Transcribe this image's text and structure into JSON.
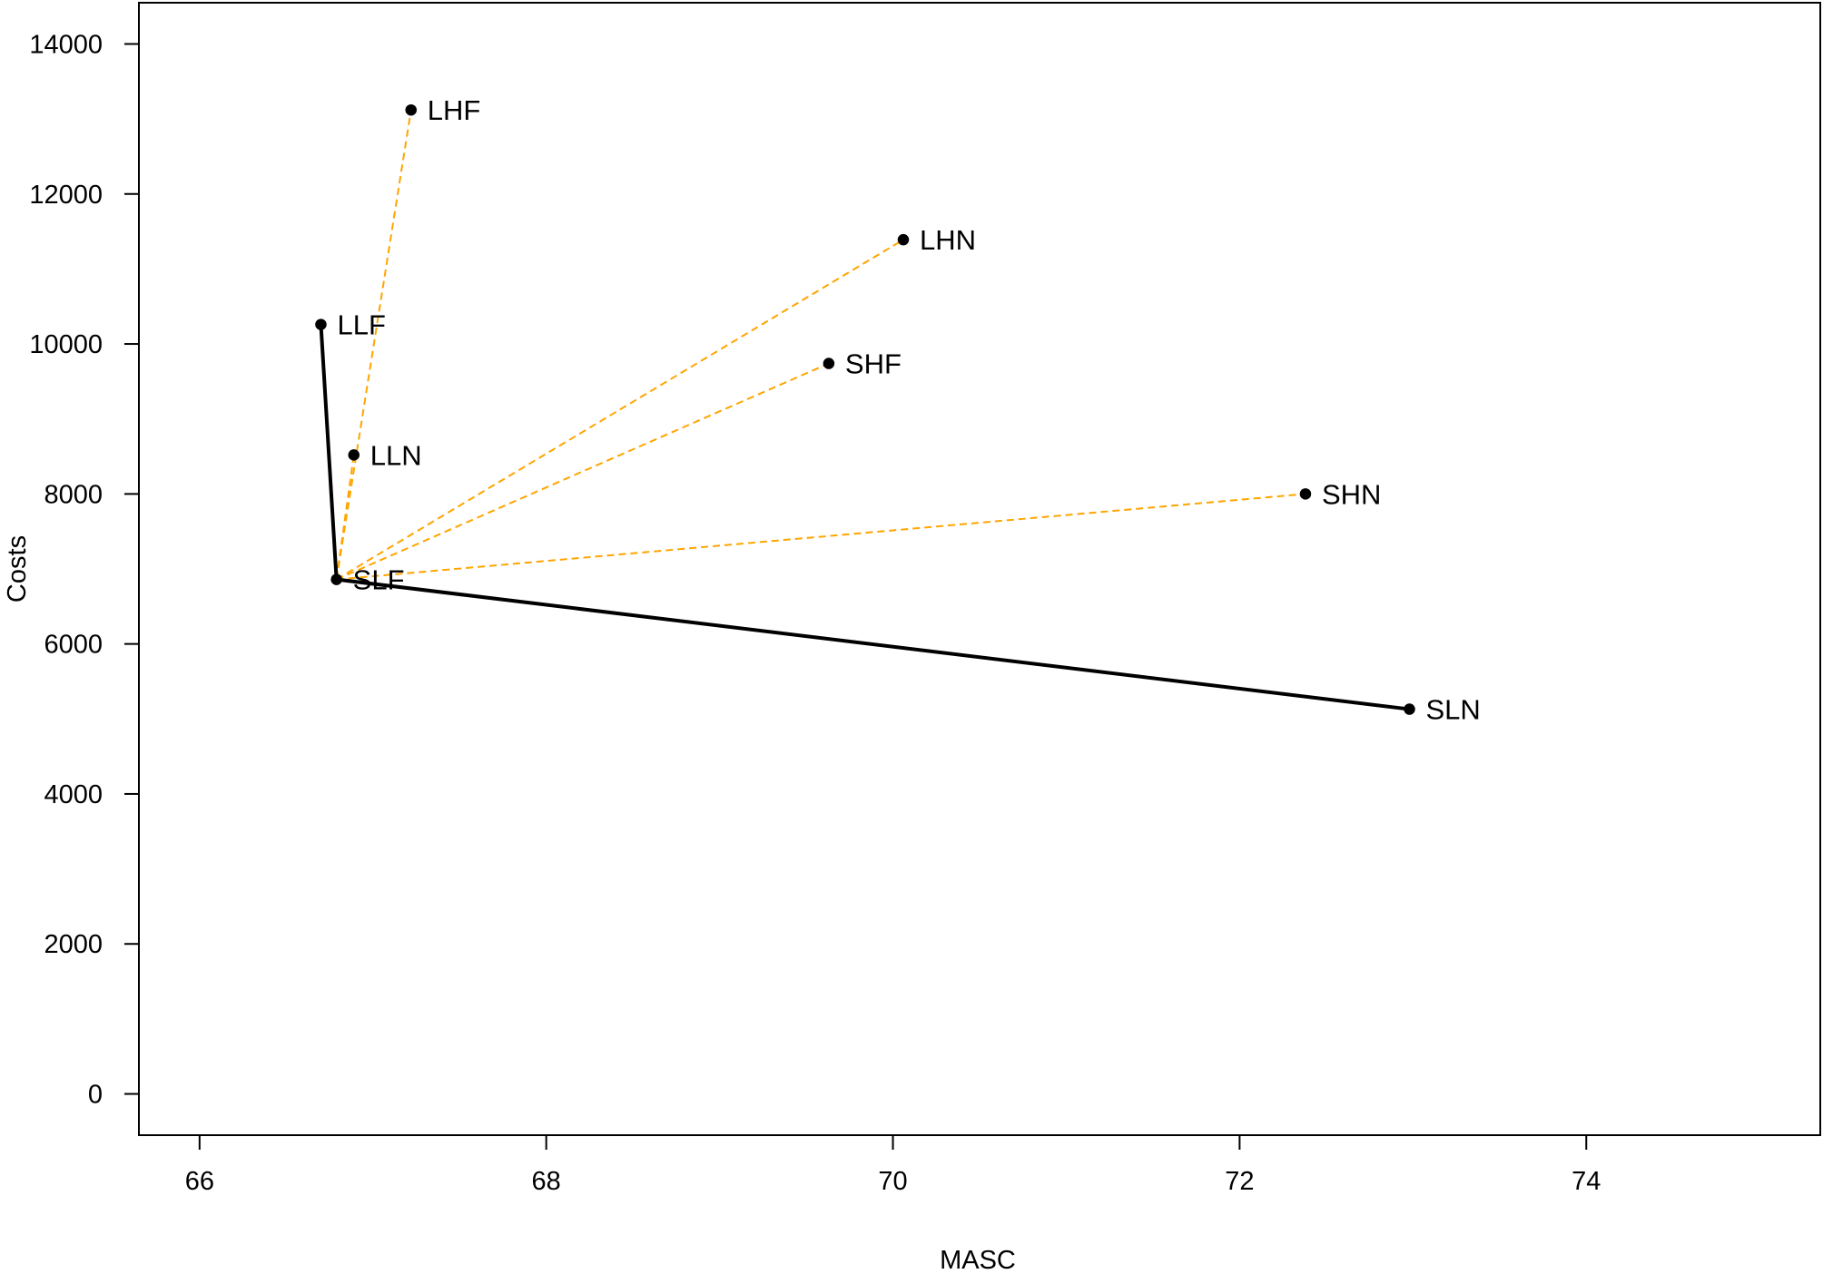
{
  "chart_data": {
    "type": "scatter",
    "title": "",
    "xlabel": "MASC",
    "ylabel": "Costs",
    "xlim": [
      65.65,
      75.35
    ],
    "ylim": [
      -550,
      14550
    ],
    "xticks": [
      66,
      68,
      70,
      72,
      74
    ],
    "yticks": [
      0,
      2000,
      4000,
      6000,
      8000,
      10000,
      12000,
      14000
    ],
    "grid": false,
    "legend": "none",
    "points": [
      {
        "label": "LHF",
        "x": 67.22,
        "y": 13120
      },
      {
        "label": "LHN",
        "x": 70.06,
        "y": 11390
      },
      {
        "label": "LLF",
        "x": 66.7,
        "y": 10260
      },
      {
        "label": "SHF",
        "x": 69.63,
        "y": 9740
      },
      {
        "label": "LLN",
        "x": 66.89,
        "y": 8520
      },
      {
        "label": "SHN",
        "x": 72.38,
        "y": 8000
      },
      {
        "label": "SLF",
        "x": 66.79,
        "y": 6860
      },
      {
        "label": "SLN",
        "x": 72.98,
        "y": 5130
      }
    ],
    "frontier": [
      "LLF",
      "SLF",
      "SLN"
    ],
    "reference_point": "SLF",
    "dashed_to_reference": [
      "LHF",
      "LHN",
      "SHF",
      "LLN",
      "SHN",
      "LLF"
    ],
    "colors": {
      "frontier": "#000000",
      "dashed": "#ffa500",
      "points": "#000000"
    }
  }
}
